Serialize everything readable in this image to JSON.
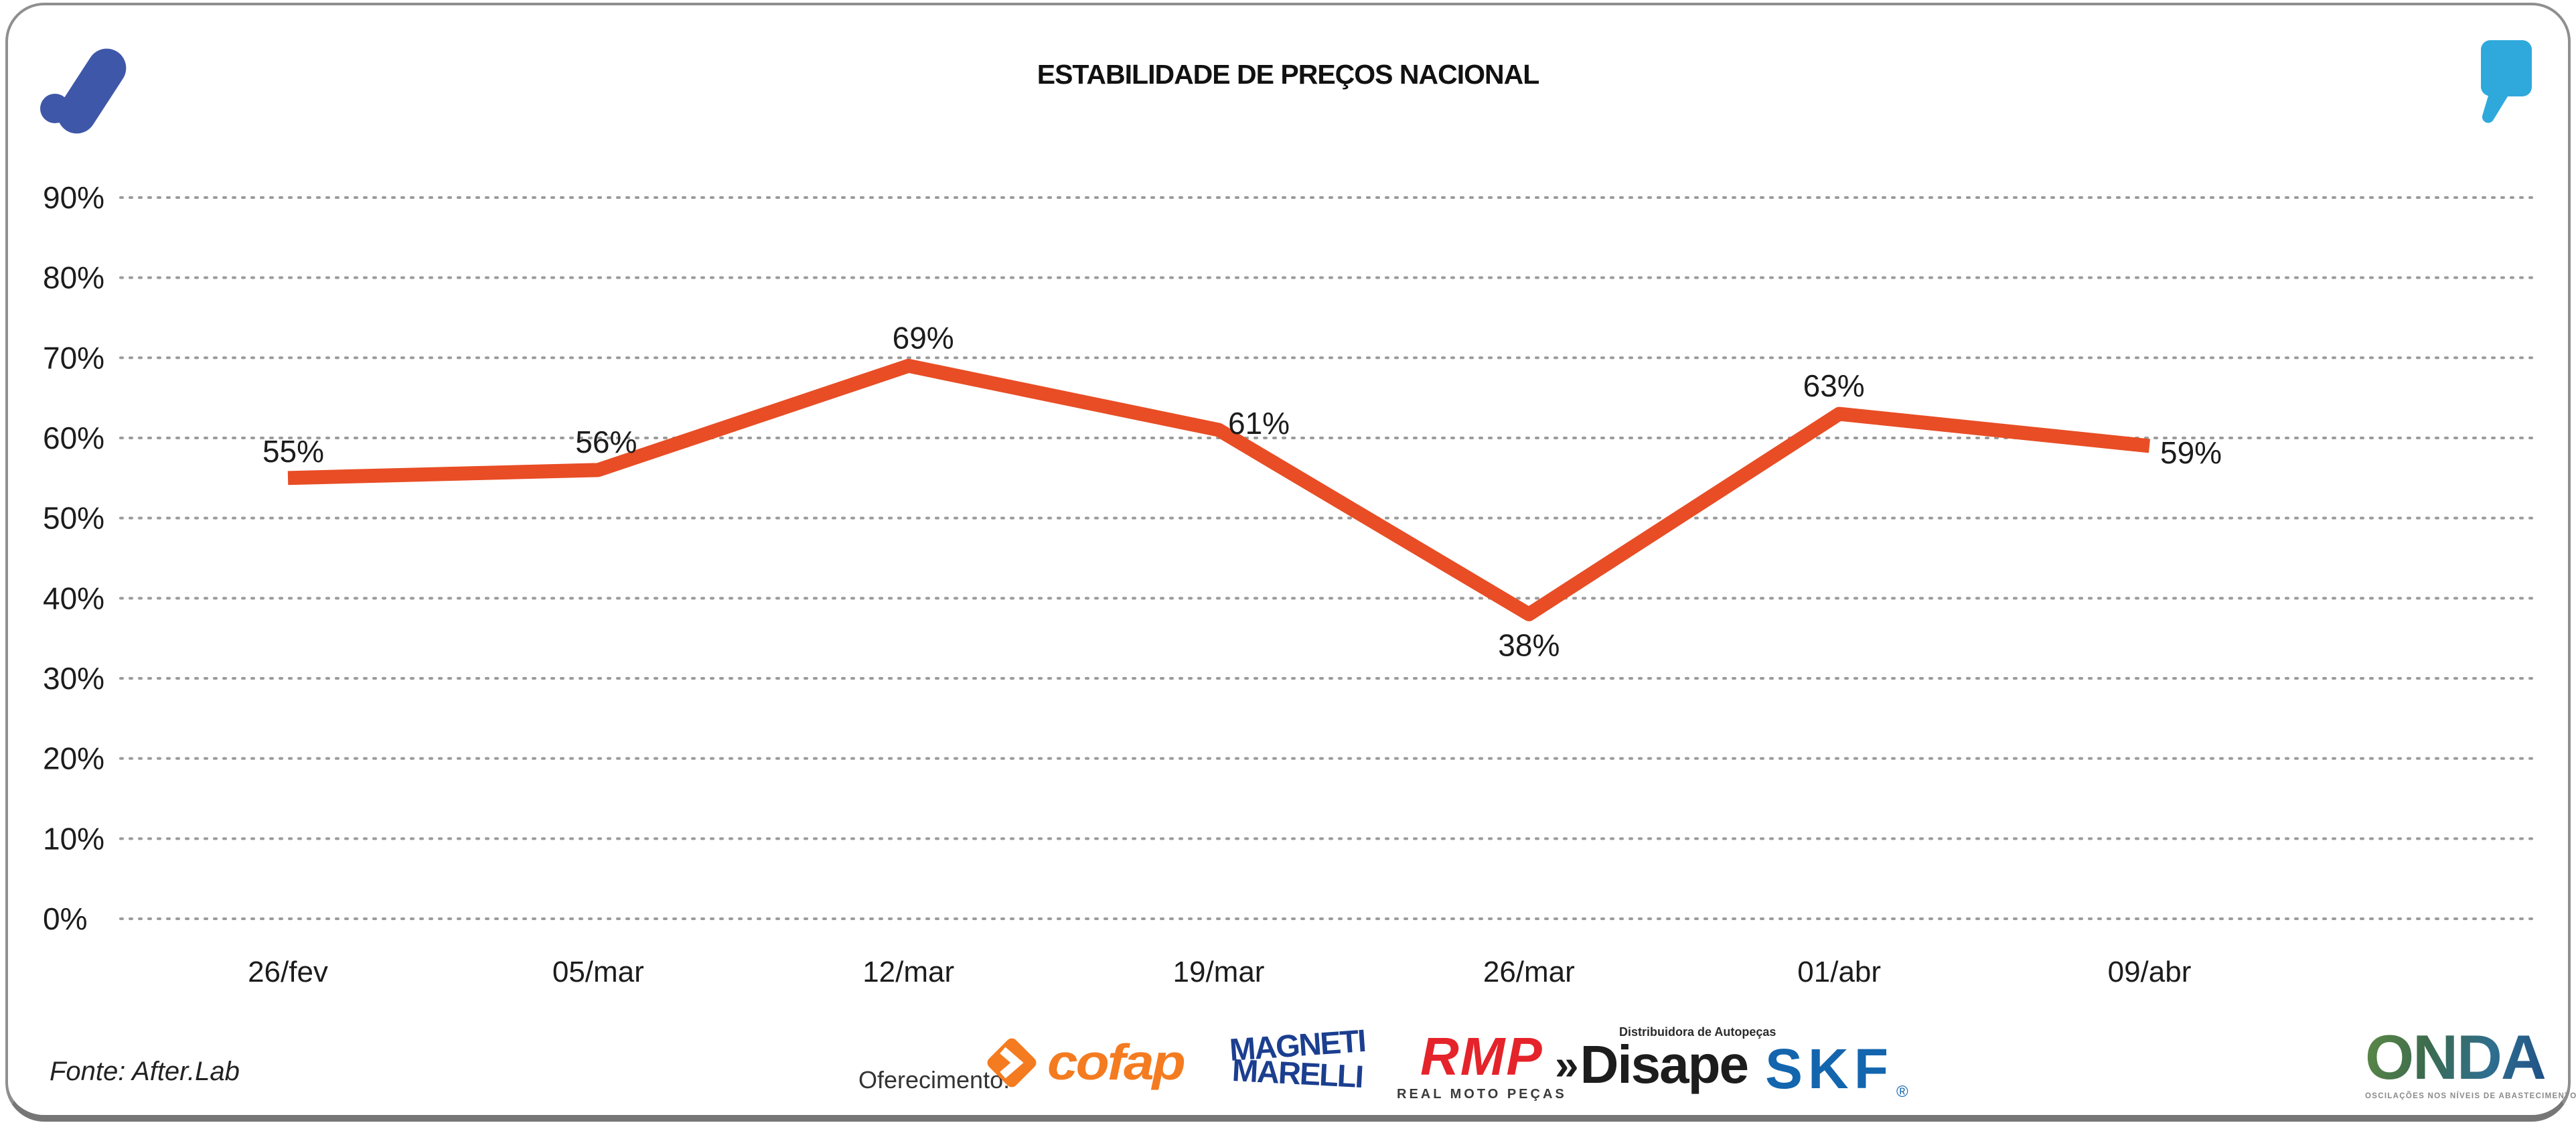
{
  "header": {
    "title": "ESTABILIDADE DE PREÇOS NACIONAL",
    "left_logo_color": "#3F57A8",
    "right_logo_color": "#2FA9DC"
  },
  "chart_data": {
    "type": "line",
    "title": "ESTABILIDADE DE PREÇOS NACIONAL",
    "categories": [
      "26/fev",
      "05/mar",
      "12/mar",
      "19/mar",
      "26/mar",
      "01/abr",
      "09/abr"
    ],
    "values": [
      55,
      56,
      69,
      61,
      38,
      63,
      59
    ],
    "data_labels": [
      "55%",
      "56%",
      "69%",
      "61%",
      "38%",
      "63%",
      "59%"
    ],
    "unit": "%",
    "xlabel": "",
    "ylabel": "",
    "ylim": [
      0,
      90
    ],
    "ytick_step": 10,
    "yticks": [
      "90%",
      "80%",
      "70%",
      "60%",
      "50%",
      "40%",
      "30%",
      "20%",
      "10%",
      "0%"
    ],
    "grid": "horizontal-dotted",
    "legend": "none",
    "line_color": "#E84D25",
    "grid_color": "#9b9b9b",
    "text_color": "#1c1c1c"
  },
  "footer": {
    "source": "Fonte: After.Lab",
    "sponsor_label": "Oferecimento:",
    "cofap": {
      "name": "cofap",
      "color": "#F47B20"
    },
    "magneti": {
      "line1": "MAGNETI",
      "line2": "MARELLI",
      "color": "#1B3E8F"
    },
    "rmp": {
      "name": "RMP",
      "sub": "REAL MOTO PEÇAS",
      "color": "#E5232A"
    },
    "disape": {
      "chevrons": "»",
      "name": "Disape",
      "sub": "Distribuidora de Autopeças",
      "color": "#1d1d1d"
    },
    "skf": {
      "name": "SKF",
      "reg": "®",
      "color": "#1365AE"
    },
    "onda": {
      "name": "ONDA",
      "tagline": "OSCILAÇÕES NOS NÍVEIS DE ABASTECIMENTO E PREÇO"
    }
  }
}
